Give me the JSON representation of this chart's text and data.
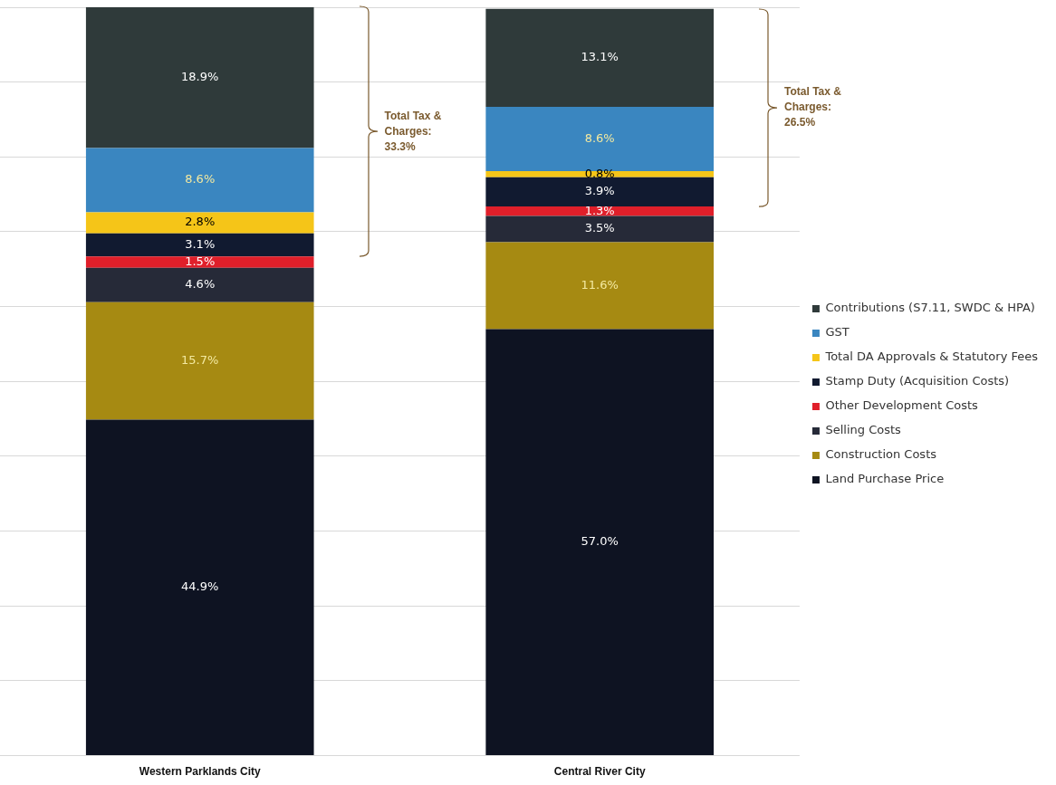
{
  "chart_data": {
    "type": "bar",
    "stacked": true,
    "categories": [
      "Western Parklands City",
      "Central River City"
    ],
    "ylim": [
      0,
      100
    ],
    "yticks": [
      {
        "value": 0,
        "label": null
      },
      {
        "value": 10,
        "label": null
      },
      {
        "value": 20,
        "label": null
      },
      {
        "value": 30,
        "label": null
      },
      {
        "value": 40,
        "label": null
      },
      {
        "value": 50,
        "label": null
      },
      {
        "value": 60,
        "label": null
      },
      {
        "value": 70,
        "label": null
      },
      {
        "value": 80,
        "label": null
      },
      {
        "value": 90,
        "label": null
      },
      {
        "value": 100,
        "label": null
      }
    ],
    "tick_labels": "x",
    "grid": "y",
    "legend": "right",
    "series": [
      {
        "name": "Land Purchase Price",
        "color": "#0e1322",
        "values": [
          44.9,
          57.0
        ],
        "value_labels": [
          "44.9%",
          "57.0%"
        ]
      },
      {
        "name": "Construction Costs",
        "color": "#a68a12",
        "values": [
          15.7,
          11.6
        ],
        "value_labels": [
          "15.7%",
          "11.6%"
        ]
      },
      {
        "name": "Selling Costs",
        "color": "#262a38",
        "values": [
          4.6,
          3.5
        ],
        "value_labels": [
          "4.6%",
          "3.5%"
        ]
      },
      {
        "name": "Other Development Costs",
        "color": "#e01f2a",
        "values": [
          1.5,
          1.3
        ],
        "value_labels": [
          "1.5%",
          "1.3%"
        ]
      },
      {
        "name": "Stamp Duty (Acquisition Costs)",
        "color": "#111a30",
        "values": [
          3.1,
          3.9
        ],
        "value_labels": [
          "3.1%",
          "3.9%"
        ]
      },
      {
        "name": "Total DA Approvals & Statutory Fees",
        "color": "#f5c518",
        "values": [
          2.8,
          0.8
        ],
        "value_labels": [
          "2.8%",
          "0.8%"
        ]
      },
      {
        "name": "GST",
        "color": "#3a86c0",
        "values": [
          8.6,
          8.6
        ],
        "value_labels": [
          "8.6%",
          "8.6%"
        ]
      },
      {
        "name": "Contributions (S7.11, SWDC & HPA)",
        "color": "#2f3a3a",
        "values": [
          18.9,
          13.1
        ],
        "value_labels": [
          "18.9%",
          "13.1%"
        ]
      }
    ],
    "annotations": [
      "Total Tax & Charges: 33.3%",
      "Total Tax & Charges: 26.5%"
    ]
  }
}
